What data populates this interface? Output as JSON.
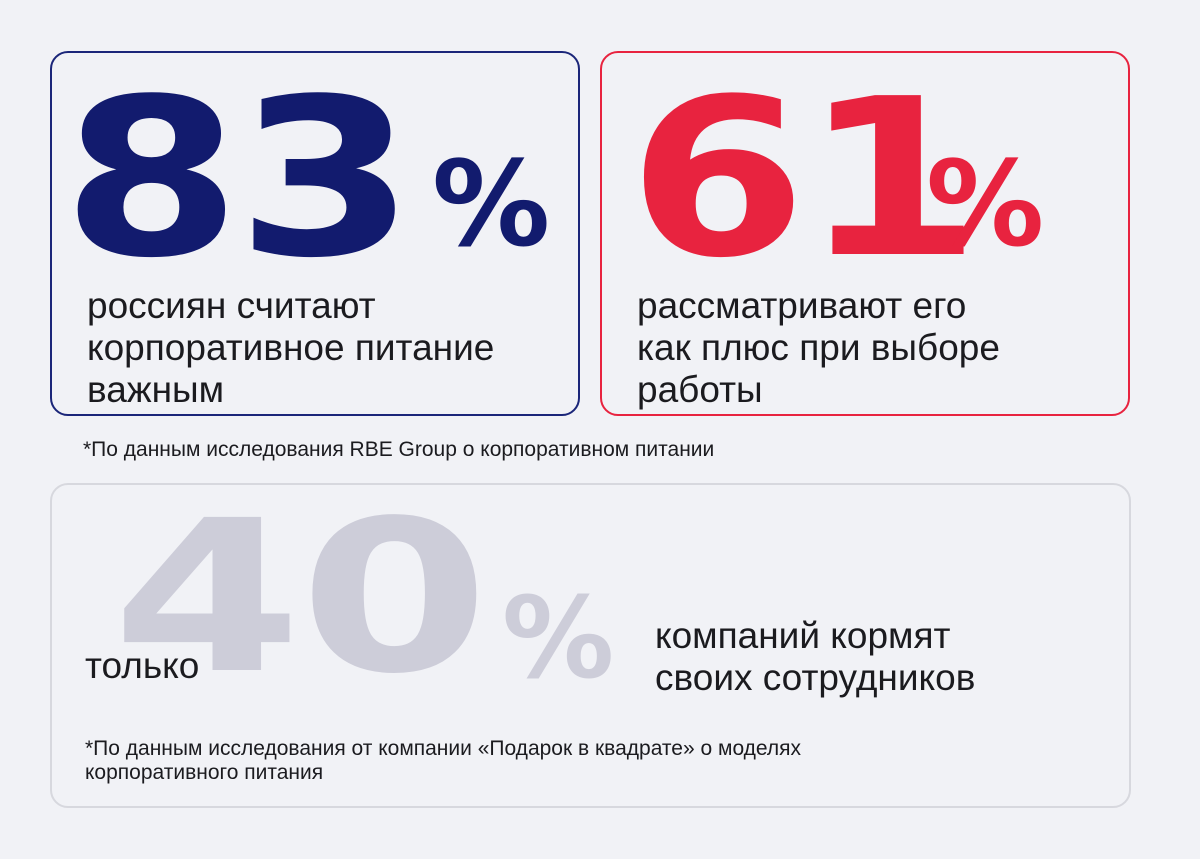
{
  "card1": {
    "number": "83",
    "percent": "%",
    "description": "россиян считают\nкорпоративное питание\nважным",
    "accent_color": "#121b6e"
  },
  "card2": {
    "number": "61",
    "percent": "%",
    "description": "рассматривают его\nкак плюс при выборе\nработы",
    "accent_color": "#e8233f"
  },
  "footnote1": "*По данным исследования RBE Group о корпоративном питании",
  "card3": {
    "prefix": "только",
    "number": "40",
    "percent": "%",
    "description": "компаний кормят\nсвоих сотрудников",
    "accent_color": "#cdcdd9",
    "footnote": "*По данным исследования от компании «Подарок в квадрате» о моделях корпоративного питания"
  }
}
